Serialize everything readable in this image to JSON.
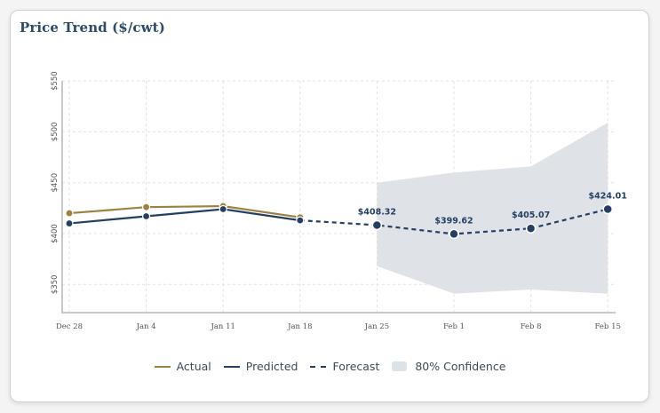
{
  "card": {
    "title": "Price Trend ($/cwt)"
  },
  "colors": {
    "actual": "#9c8140",
    "predicted": "#243f62",
    "forecast": "#243f62",
    "confidence": "#dde2e7",
    "grid": "#e2e2e2",
    "axis": "#c8c8c8",
    "tick_text": "#555555",
    "label_text": "#243f62"
  },
  "chart_data": {
    "type": "line",
    "title": "Price Trend ($/cwt)",
    "xlabel": "",
    "ylabel": "",
    "categories": [
      "Dec 28",
      "Jan 4",
      "Jan 11",
      "Jan 18",
      "Jan 25",
      "Feb 1",
      "Feb 8",
      "Feb 15"
    ],
    "ylim": [
      322,
      560
    ],
    "yticks": [
      350,
      400,
      450,
      500,
      550
    ],
    "ytick_labels": [
      "$350",
      "$400",
      "$450",
      "$500",
      "$550"
    ],
    "grid": true,
    "series": [
      {
        "name": "Actual",
        "style": "solid",
        "values": [
          420,
          426,
          427,
          416,
          null,
          null,
          null,
          null
        ]
      },
      {
        "name": "Predicted",
        "style": "solid",
        "values": [
          410,
          417,
          424,
          413,
          null,
          null,
          null,
          null
        ]
      },
      {
        "name": "Forecast",
        "style": "dashed",
        "values": [
          null,
          null,
          null,
          413,
          408.32,
          399.62,
          405.07,
          424.01
        ],
        "data_labels": [
          null,
          null,
          null,
          null,
          "$408.32",
          "$399.62",
          "$405.07",
          "$424.01"
        ]
      },
      {
        "name": "80% Confidence",
        "style": "band",
        "upper": [
          null,
          null,
          null,
          null,
          450,
          460,
          466,
          509
        ],
        "lower": [
          null,
          null,
          null,
          null,
          368,
          341,
          345,
          341
        ]
      }
    ],
    "legend": {
      "position": "bottom-center",
      "entries": [
        "Actual",
        "Predicted",
        "Forecast",
        "80% Confidence"
      ]
    }
  }
}
